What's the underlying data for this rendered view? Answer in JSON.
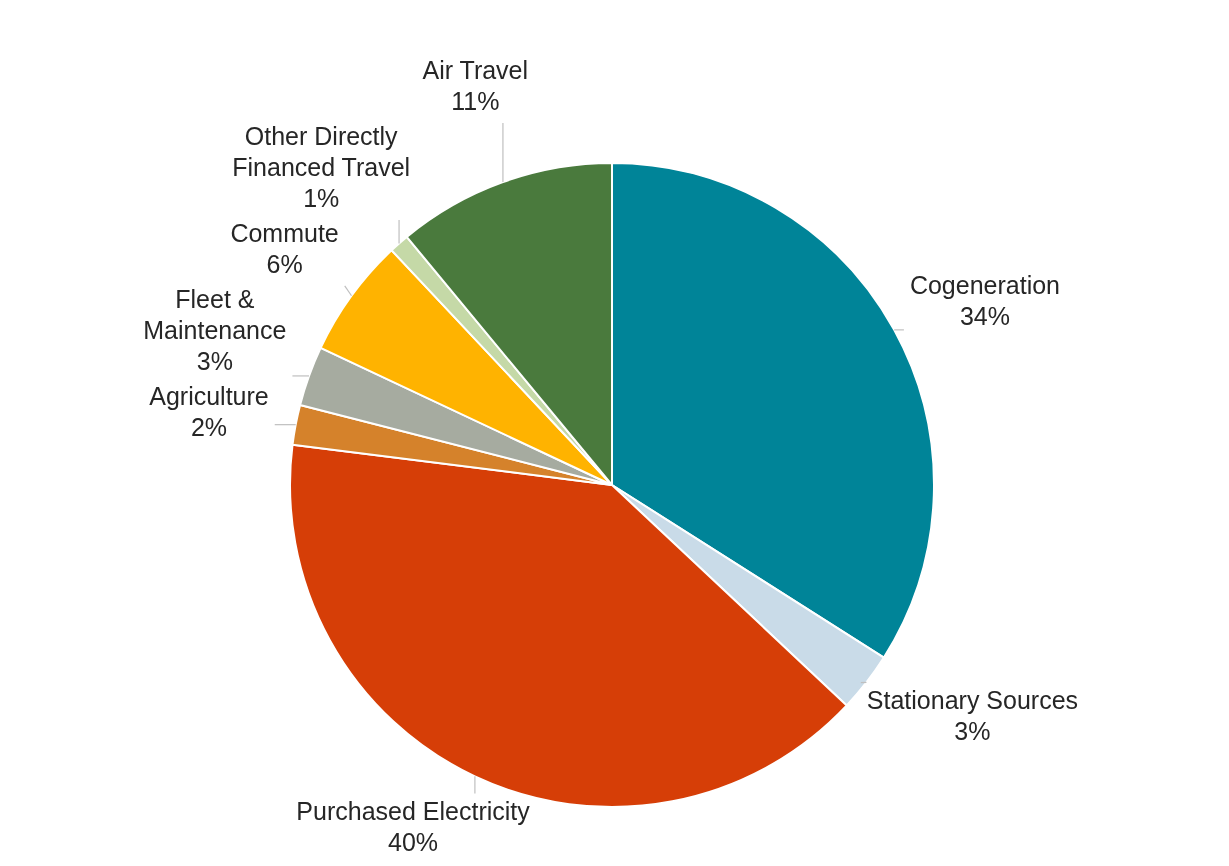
{
  "chart_data": {
    "type": "pie",
    "categories": [
      "Cogeneration",
      "Stationary Sources",
      "Purchased Electricity",
      "Agriculture",
      "Fleet & Maintenance",
      "Commute",
      "Other Directly Financed Travel",
      "Air Travel"
    ],
    "values": [
      34,
      3,
      40,
      2,
      3,
      6,
      1,
      11
    ],
    "value_labels": [
      "34%",
      "3%",
      "40%",
      "2%",
      "3%",
      "6%",
      "1%",
      "11%"
    ],
    "colors": [
      "#008498",
      "#c9dbe8",
      "#d63e07",
      "#d5822b",
      "#a6aba0",
      "#ffb300",
      "#c5d9a7",
      "#4a7a3d"
    ],
    "legend": false
  }
}
